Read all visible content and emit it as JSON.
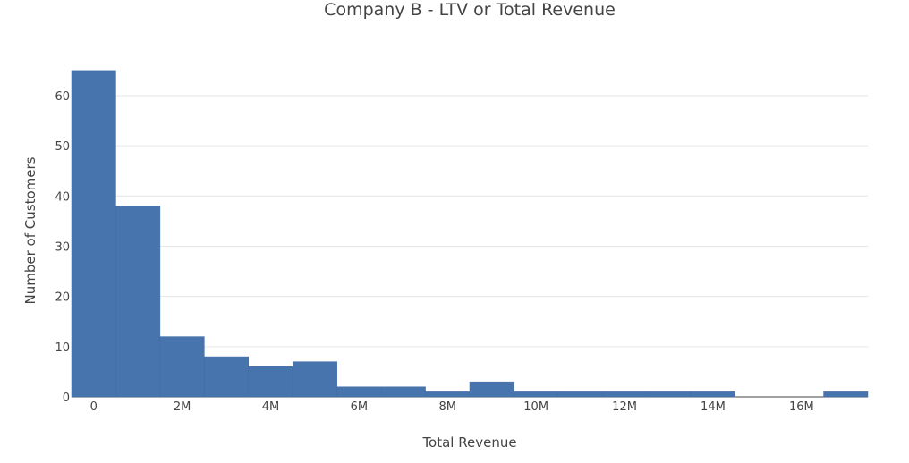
{
  "chart_data": {
    "type": "bar",
    "subtype": "histogram",
    "title": "Company B - LTV or Total Revenue",
    "xlabel": "Total Revenue",
    "ylabel": "Number of Customers",
    "bar_color": "#4874ae",
    "grid": true,
    "xlim": [
      -500000,
      17500000
    ],
    "ylim": [
      0,
      68
    ],
    "x_ticks": [
      {
        "value": 0,
        "label": "0"
      },
      {
        "value": 2000000,
        "label": "2M"
      },
      {
        "value": 4000000,
        "label": "4M"
      },
      {
        "value": 6000000,
        "label": "6M"
      },
      {
        "value": 8000000,
        "label": "8M"
      },
      {
        "value": 10000000,
        "label": "10M"
      },
      {
        "value": 12000000,
        "label": "12M"
      },
      {
        "value": 14000000,
        "label": "14M"
      },
      {
        "value": 16000000,
        "label": "16M"
      }
    ],
    "y_ticks": [
      {
        "value": 0,
        "label": "0"
      },
      {
        "value": 10,
        "label": "10"
      },
      {
        "value": 20,
        "label": "20"
      },
      {
        "value": 30,
        "label": "30"
      },
      {
        "value": 40,
        "label": "40"
      },
      {
        "value": 50,
        "label": "50"
      },
      {
        "value": 60,
        "label": "60"
      }
    ],
    "bins": [
      {
        "start": -500000,
        "end": 500000,
        "count": 65
      },
      {
        "start": 500000,
        "end": 1500000,
        "count": 38
      },
      {
        "start": 1500000,
        "end": 2500000,
        "count": 12
      },
      {
        "start": 2500000,
        "end": 3500000,
        "count": 8
      },
      {
        "start": 3500000,
        "end": 4500000,
        "count": 6
      },
      {
        "start": 4500000,
        "end": 5500000,
        "count": 7
      },
      {
        "start": 5500000,
        "end": 6500000,
        "count": 2
      },
      {
        "start": 6500000,
        "end": 7500000,
        "count": 2
      },
      {
        "start": 7500000,
        "end": 8500000,
        "count": 1
      },
      {
        "start": 8500000,
        "end": 9500000,
        "count": 3
      },
      {
        "start": 9500000,
        "end": 10500000,
        "count": 1
      },
      {
        "start": 10500000,
        "end": 11500000,
        "count": 1
      },
      {
        "start": 11500000,
        "end": 12500000,
        "count": 1
      },
      {
        "start": 12500000,
        "end": 13500000,
        "count": 1
      },
      {
        "start": 13500000,
        "end": 14500000,
        "count": 1
      },
      {
        "start": 14500000,
        "end": 15500000,
        "count": 0
      },
      {
        "start": 15500000,
        "end": 16500000,
        "count": 0
      },
      {
        "start": 16500000,
        "end": 17500000,
        "count": 1
      }
    ]
  }
}
